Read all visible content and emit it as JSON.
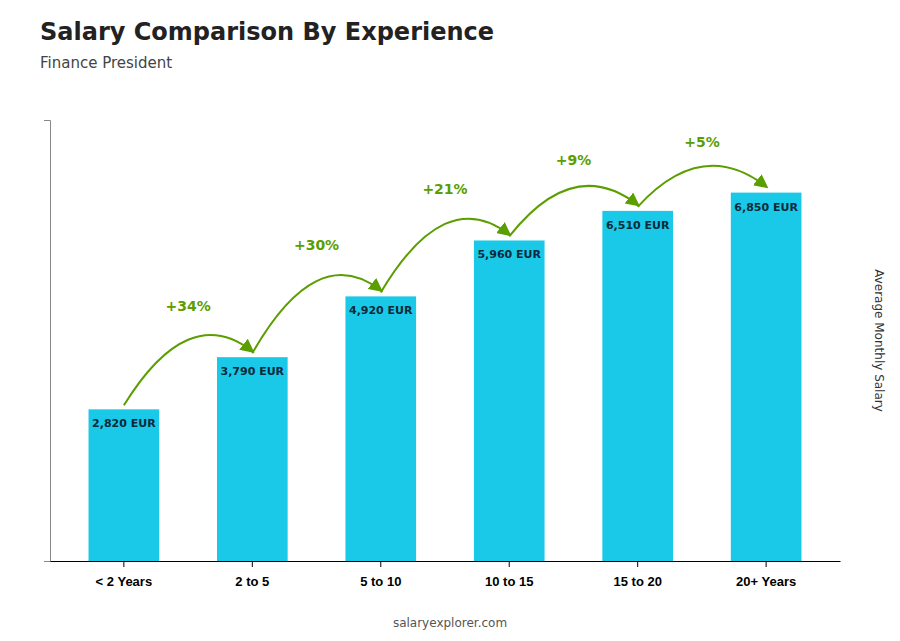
{
  "chart_data": {
    "type": "bar",
    "title": "Salary Comparison By Experience",
    "subtitle": "Finance President",
    "ylabel": "Average Monthly Salary",
    "categories": [
      "< 2 Years",
      "2 to 5",
      "5 to 10",
      "10 to 15",
      "15 to 20",
      "20+ Years"
    ],
    "values": [
      2820,
      3790,
      4920,
      5960,
      6510,
      6850
    ],
    "value_labels": [
      "2,820 EUR",
      "3,790 EUR",
      "4,920 EUR",
      "5,960 EUR",
      "6,510 EUR",
      "6,850 EUR"
    ],
    "data_labels": true,
    "annotations": [
      "+34%",
      "+30%",
      "+21%",
      "+9%",
      "+5%"
    ],
    "footer": "salaryexplorer.com",
    "color": "#1ac8e8",
    "ylim": [
      0,
      8200
    ],
    "tick_labels": "x",
    "grid": false
  }
}
